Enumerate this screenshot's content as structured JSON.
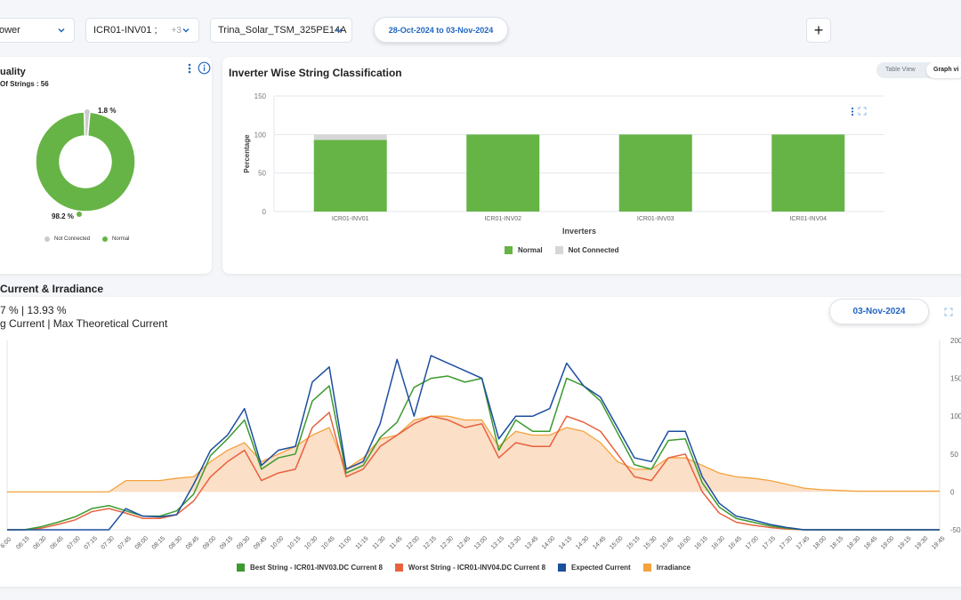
{
  "filters": {
    "metric": "ower",
    "inverter": "ICR01-INV01 ;",
    "inverter_more": "+3",
    "module": "Trina_Solar_TSM_325PE14A",
    "date_range": "28-Oct-2024 to 03-Nov-2024"
  },
  "quality_card": {
    "title": "uality",
    "subtitle": "Of Strings : 56",
    "donut": {
      "slices": [
        {
          "name": "Normal",
          "value": 98.2,
          "label": "98.2 %",
          "color": "#66b446"
        },
        {
          "name": "Not Connected",
          "value": 1.8,
          "label": "1.8 %",
          "color": "#cccccc"
        }
      ]
    },
    "legend": [
      {
        "label": "Not Connected",
        "color": "#cccccc"
      },
      {
        "label": "Normal",
        "color": "#66b446"
      }
    ]
  },
  "classification_card": {
    "title": "Inverter Wise String Classification",
    "toggle": {
      "table_label": "Table View",
      "graph_label": "Graph vi"
    },
    "chart_data": {
      "type": "bar",
      "stacked": true,
      "categories": [
        "ICR01-INV01",
        "ICR01-INV02",
        "ICR01-INV03",
        "ICR01-INV04"
      ],
      "series": [
        {
          "name": "Normal",
          "values": [
            92.9,
            100,
            100,
            100
          ],
          "color": "#66b446"
        },
        {
          "name": "Not Connected",
          "values": [
            7.1,
            0,
            0,
            0
          ],
          "color": "#d6d6d6"
        }
      ],
      "xlabel": "Inverters",
      "ylabel": "Percentage",
      "ylim": [
        0,
        150
      ],
      "yticks": [
        "0",
        "50",
        "100",
        "150"
      ],
      "legend_position": "bottom"
    }
  },
  "current_card": {
    "title": "Current & Irradiance",
    "stats_values": "7 % | 13.93 %",
    "stats_labels": "g Current | Max Theoretical Current",
    "date": "03-Nov-2024",
    "chart_data": {
      "type": "line",
      "x": [
        "06:00",
        "06:15",
        "06:30",
        "06:45",
        "07:00",
        "07:15",
        "07:30",
        "07:45",
        "08:00",
        "08:15",
        "08:30",
        "08:45",
        "09:00",
        "09:15",
        "09:30",
        "09:45",
        "10:00",
        "10:15",
        "10:30",
        "10:45",
        "11:00",
        "11:15",
        "11:30",
        "11:45",
        "12:00",
        "12:15",
        "12:30",
        "12:45",
        "13:00",
        "13:15",
        "13:30",
        "13:45",
        "14:00",
        "14:15",
        "14:30",
        "14:45",
        "15:00",
        "15:15",
        "15:30",
        "15:45",
        "16:00",
        "16:15",
        "16:30",
        "16:45",
        "17:00",
        "17:15",
        "17:30",
        "17:45",
        "18:00",
        "18:15",
        "18:30",
        "18:45",
        "19:00",
        "19:15",
        "19:30",
        "19:45"
      ],
      "xtick_labels": [
        "6:00",
        "06:15",
        "06:30",
        "06:45",
        "07:00",
        "07:15",
        "07:30",
        "07:45",
        "08:00",
        "08:15",
        "08:30",
        "08:45",
        "09:00",
        "09:15",
        "09:30",
        "09:45",
        "10:00",
        "10:15",
        "10:30",
        "10:45",
        "11:00",
        "11:15",
        "11:30",
        "11:45",
        "12:00",
        "12:15",
        "12:30",
        "12:45",
        "13:00",
        "13:15",
        "13:30",
        "13:45",
        "14:00",
        "14:15",
        "14:30",
        "14:45",
        "15:00",
        "15:15",
        "15:30",
        "15:45",
        "16:00",
        "16:15",
        "16:30",
        "16:45",
        "17:00",
        "17:15",
        "17:30",
        "17:45",
        "18:00",
        "18:15",
        "18:30",
        "18:45",
        "19:00",
        "19:15",
        "19:30",
        "19:45"
      ],
      "y_right_ticks": [
        "200",
        "150",
        "100",
        "50",
        "0",
        "-50"
      ],
      "y_right_range": [
        -50,
        200
      ],
      "series": [
        {
          "name": "Best String - ICR01-INV03.DC Current 8",
          "color": "#3c9a2e",
          "values": [
            -50,
            -50,
            -46,
            -40,
            -33,
            -22,
            -18,
            -25,
            -32,
            -32,
            -25,
            -3,
            48,
            70,
            95,
            30,
            45,
            50,
            120,
            140,
            25,
            35,
            72,
            92,
            138,
            150,
            153,
            145,
            150,
            55,
            95,
            80,
            80,
            150,
            140,
            120,
            78,
            36,
            30,
            68,
            70,
            12,
            -20,
            -35,
            -40,
            -45,
            -48,
            -50,
            -50,
            -50,
            -50,
            -50,
            -50,
            -50,
            -50,
            -50
          ]
        },
        {
          "name": "Worst String - ICR01-INV04.DC Current 8",
          "color": "#e8613e",
          "values": [
            -50,
            -50,
            -48,
            -43,
            -37,
            -26,
            -22,
            -28,
            -35,
            -35,
            -30,
            -12,
            20,
            40,
            55,
            15,
            25,
            30,
            85,
            105,
            20,
            30,
            60,
            75,
            90,
            100,
            95,
            85,
            90,
            45,
            65,
            60,
            60,
            100,
            92,
            80,
            50,
            20,
            15,
            45,
            50,
            0,
            -28,
            -40,
            -44,
            -47,
            -49,
            -50,
            -50,
            -50,
            -50,
            -50,
            -50,
            -50,
            -50,
            -50
          ]
        },
        {
          "name": "Expected Current",
          "color": "#1c4ea0",
          "values": [
            -50,
            -50,
            -50,
            -50,
            -50,
            -50,
            -50,
            -22,
            -32,
            -33,
            -30,
            10,
            55,
            75,
            110,
            35,
            55,
            60,
            145,
            165,
            30,
            40,
            90,
            175,
            100,
            180,
            170,
            160,
            150,
            70,
            100,
            100,
            110,
            170,
            140,
            125,
            85,
            45,
            40,
            80,
            80,
            20,
            -15,
            -32,
            -37,
            -43,
            -47,
            -50,
            -50,
            -50,
            -50,
            -50,
            -50,
            -50,
            -50,
            -50
          ]
        },
        {
          "name": "Irradiance",
          "color": "#f4a23c",
          "fill": "#fad9bd",
          "values": [
            0,
            0,
            0,
            0,
            0,
            0,
            0,
            15,
            15,
            15,
            18,
            20,
            40,
            55,
            65,
            40,
            50,
            60,
            75,
            85,
            30,
            45,
            70,
            75,
            95,
            100,
            100,
            95,
            95,
            60,
            80,
            75,
            75,
            85,
            80,
            65,
            40,
            30,
            30,
            45,
            45,
            35,
            25,
            20,
            18,
            15,
            10,
            5,
            3,
            2,
            1,
            1,
            1,
            1,
            1,
            1
          ]
        }
      ],
      "legend_position": "bottom"
    }
  },
  "icons": {
    "chevron": "chevron-down-icon",
    "plus": "plus-icon",
    "kebab": "kebab-menu-icon",
    "info": "info-icon",
    "fullscreen": "fullscreen-icon"
  }
}
